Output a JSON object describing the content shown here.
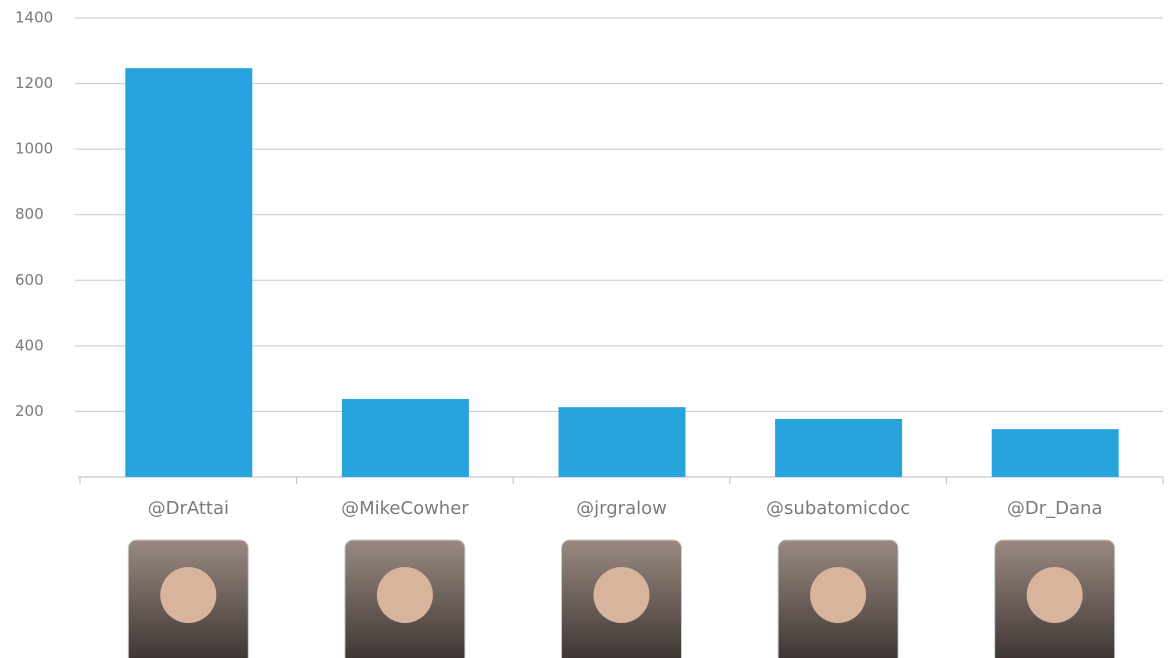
{
  "chart_data": {
    "type": "bar",
    "categories": [
      "@DrAttai",
      "@MikeCowher",
      "@jrgralow",
      "@subatomicdoc",
      "@Dr_Dana"
    ],
    "values": [
      1247,
      238,
      213,
      177,
      146
    ],
    "color": "#27a4de",
    "ylim": [
      0,
      1400
    ],
    "yticks": [
      200,
      400,
      600,
      800,
      1000,
      1200,
      1400
    ],
    "grid": true
  }
}
